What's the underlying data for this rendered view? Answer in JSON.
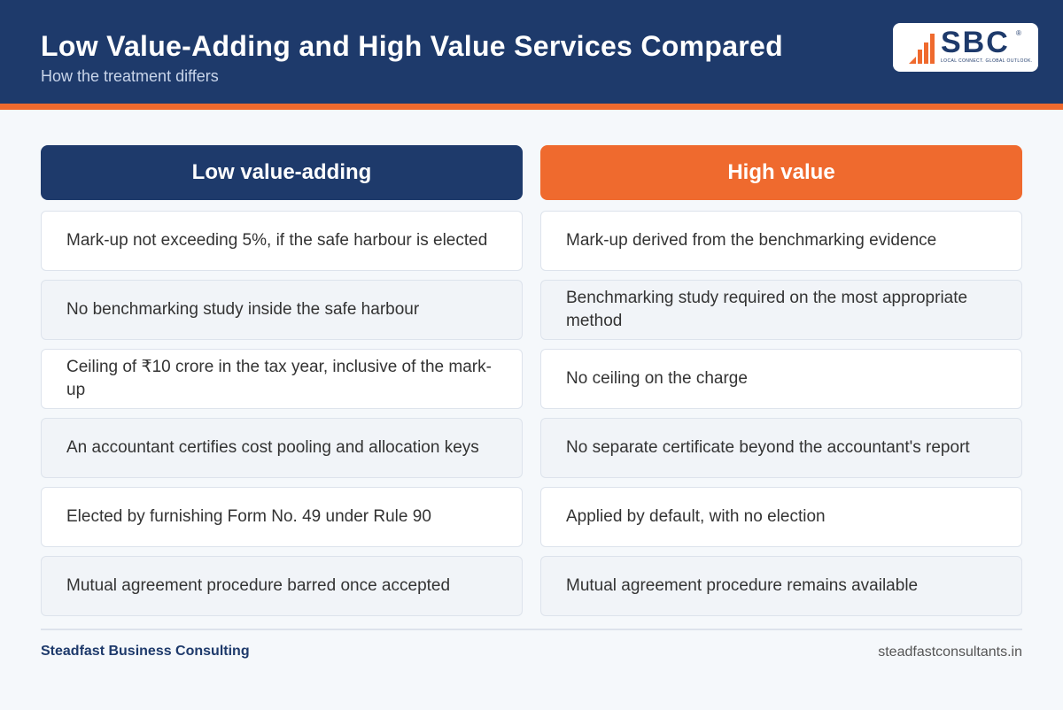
{
  "header": {
    "title": "Low Value-Adding and High Value Services Compared",
    "subtitle": "How the treatment differs",
    "logo": {
      "mark": "SBC",
      "registered": "®",
      "tagline": "LOCAL CONNECT. GLOBAL OUTLOOK."
    }
  },
  "table": {
    "columns": [
      "Low value-adding",
      "High value"
    ],
    "rows": [
      [
        "Mark-up not exceeding 5%, if the safe harbour is elected",
        "Mark-up derived from the benchmarking evidence"
      ],
      [
        "No benchmarking study inside the safe harbour",
        "Benchmarking study required on the most appropriate method"
      ],
      [
        "Ceiling of ₹10 crore in the tax year, inclusive of the mark-up",
        "No ceiling on the charge"
      ],
      [
        "An accountant certifies cost pooling and allocation keys",
        "No separate certificate beyond the accountant's report"
      ],
      [
        "Elected by furnishing Form No. 49 under Rule 90",
        "Applied by default, with no election"
      ],
      [
        "Mutual agreement procedure barred once accepted",
        "Mutual agreement procedure remains available"
      ]
    ]
  },
  "footer": {
    "left": "Steadfast Business Consulting",
    "right": "steadfastconsultants.in"
  }
}
